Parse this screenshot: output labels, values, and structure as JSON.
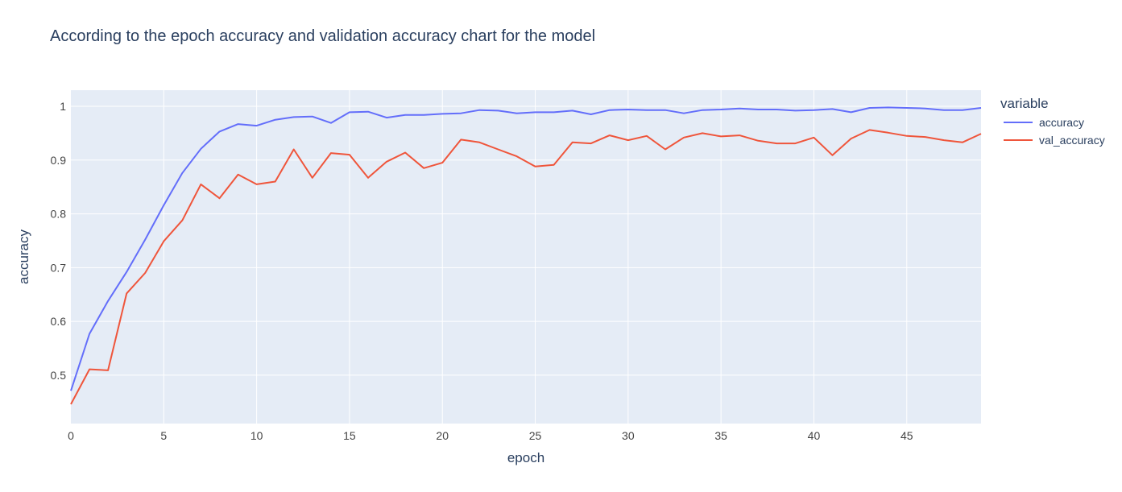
{
  "chart_data": {
    "type": "line",
    "title": "According to the epoch accuracy and validation accuracy chart for the model",
    "xlabel": "epoch",
    "ylabel": "accuracy",
    "xlim": [
      0,
      49
    ],
    "ylim": [
      0.41,
      1.03
    ],
    "xticks": [
      0,
      5,
      10,
      15,
      20,
      25,
      30,
      35,
      40,
      45
    ],
    "yticks": [
      0.5,
      0.6,
      0.7,
      0.8,
      0.9,
      1
    ],
    "ytick_labels": [
      "0.5",
      "0.6",
      "0.7",
      "0.8",
      "0.9",
      "1"
    ],
    "grid": true,
    "legend": {
      "title": "variable",
      "position": "right"
    },
    "x": [
      0,
      1,
      2,
      3,
      4,
      5,
      6,
      7,
      8,
      9,
      10,
      11,
      12,
      13,
      14,
      15,
      16,
      17,
      18,
      19,
      20,
      21,
      22,
      23,
      24,
      25,
      26,
      27,
      28,
      29,
      30,
      31,
      32,
      33,
      34,
      35,
      36,
      37,
      38,
      39,
      40,
      41,
      42,
      43,
      44,
      45,
      46,
      47,
      48,
      49
    ],
    "series": [
      {
        "name": "accuracy",
        "color": "#636efa",
        "values": [
          0.471,
          0.577,
          0.638,
          0.692,
          0.752,
          0.816,
          0.876,
          0.921,
          0.953,
          0.967,
          0.964,
          0.975,
          0.98,
          0.981,
          0.969,
          0.989,
          0.99,
          0.979,
          0.984,
          0.984,
          0.986,
          0.987,
          0.993,
          0.992,
          0.987,
          0.989,
          0.989,
          0.992,
          0.985,
          0.993,
          0.994,
          0.993,
          0.993,
          0.987,
          0.993,
          0.994,
          0.996,
          0.994,
          0.994,
          0.992,
          0.993,
          0.995,
          0.989,
          0.997,
          0.998,
          0.997,
          0.996,
          0.993,
          0.993,
          0.997
        ]
      },
      {
        "name": "val_accuracy",
        "color": "#ef553b",
        "values": [
          0.446,
          0.511,
          0.509,
          0.652,
          0.69,
          0.749,
          0.788,
          0.855,
          0.829,
          0.873,
          0.855,
          0.86,
          0.92,
          0.867,
          0.913,
          0.91,
          0.867,
          0.897,
          0.914,
          0.885,
          0.895,
          0.938,
          0.933,
          0.92,
          0.907,
          0.888,
          0.891,
          0.933,
          0.931,
          0.946,
          0.937,
          0.945,
          0.92,
          0.942,
          0.95,
          0.944,
          0.946,
          0.936,
          0.931,
          0.931,
          0.942,
          0.909,
          0.94,
          0.956,
          0.951,
          0.945,
          0.943,
          0.937,
          0.933,
          0.949
        ]
      }
    ]
  }
}
